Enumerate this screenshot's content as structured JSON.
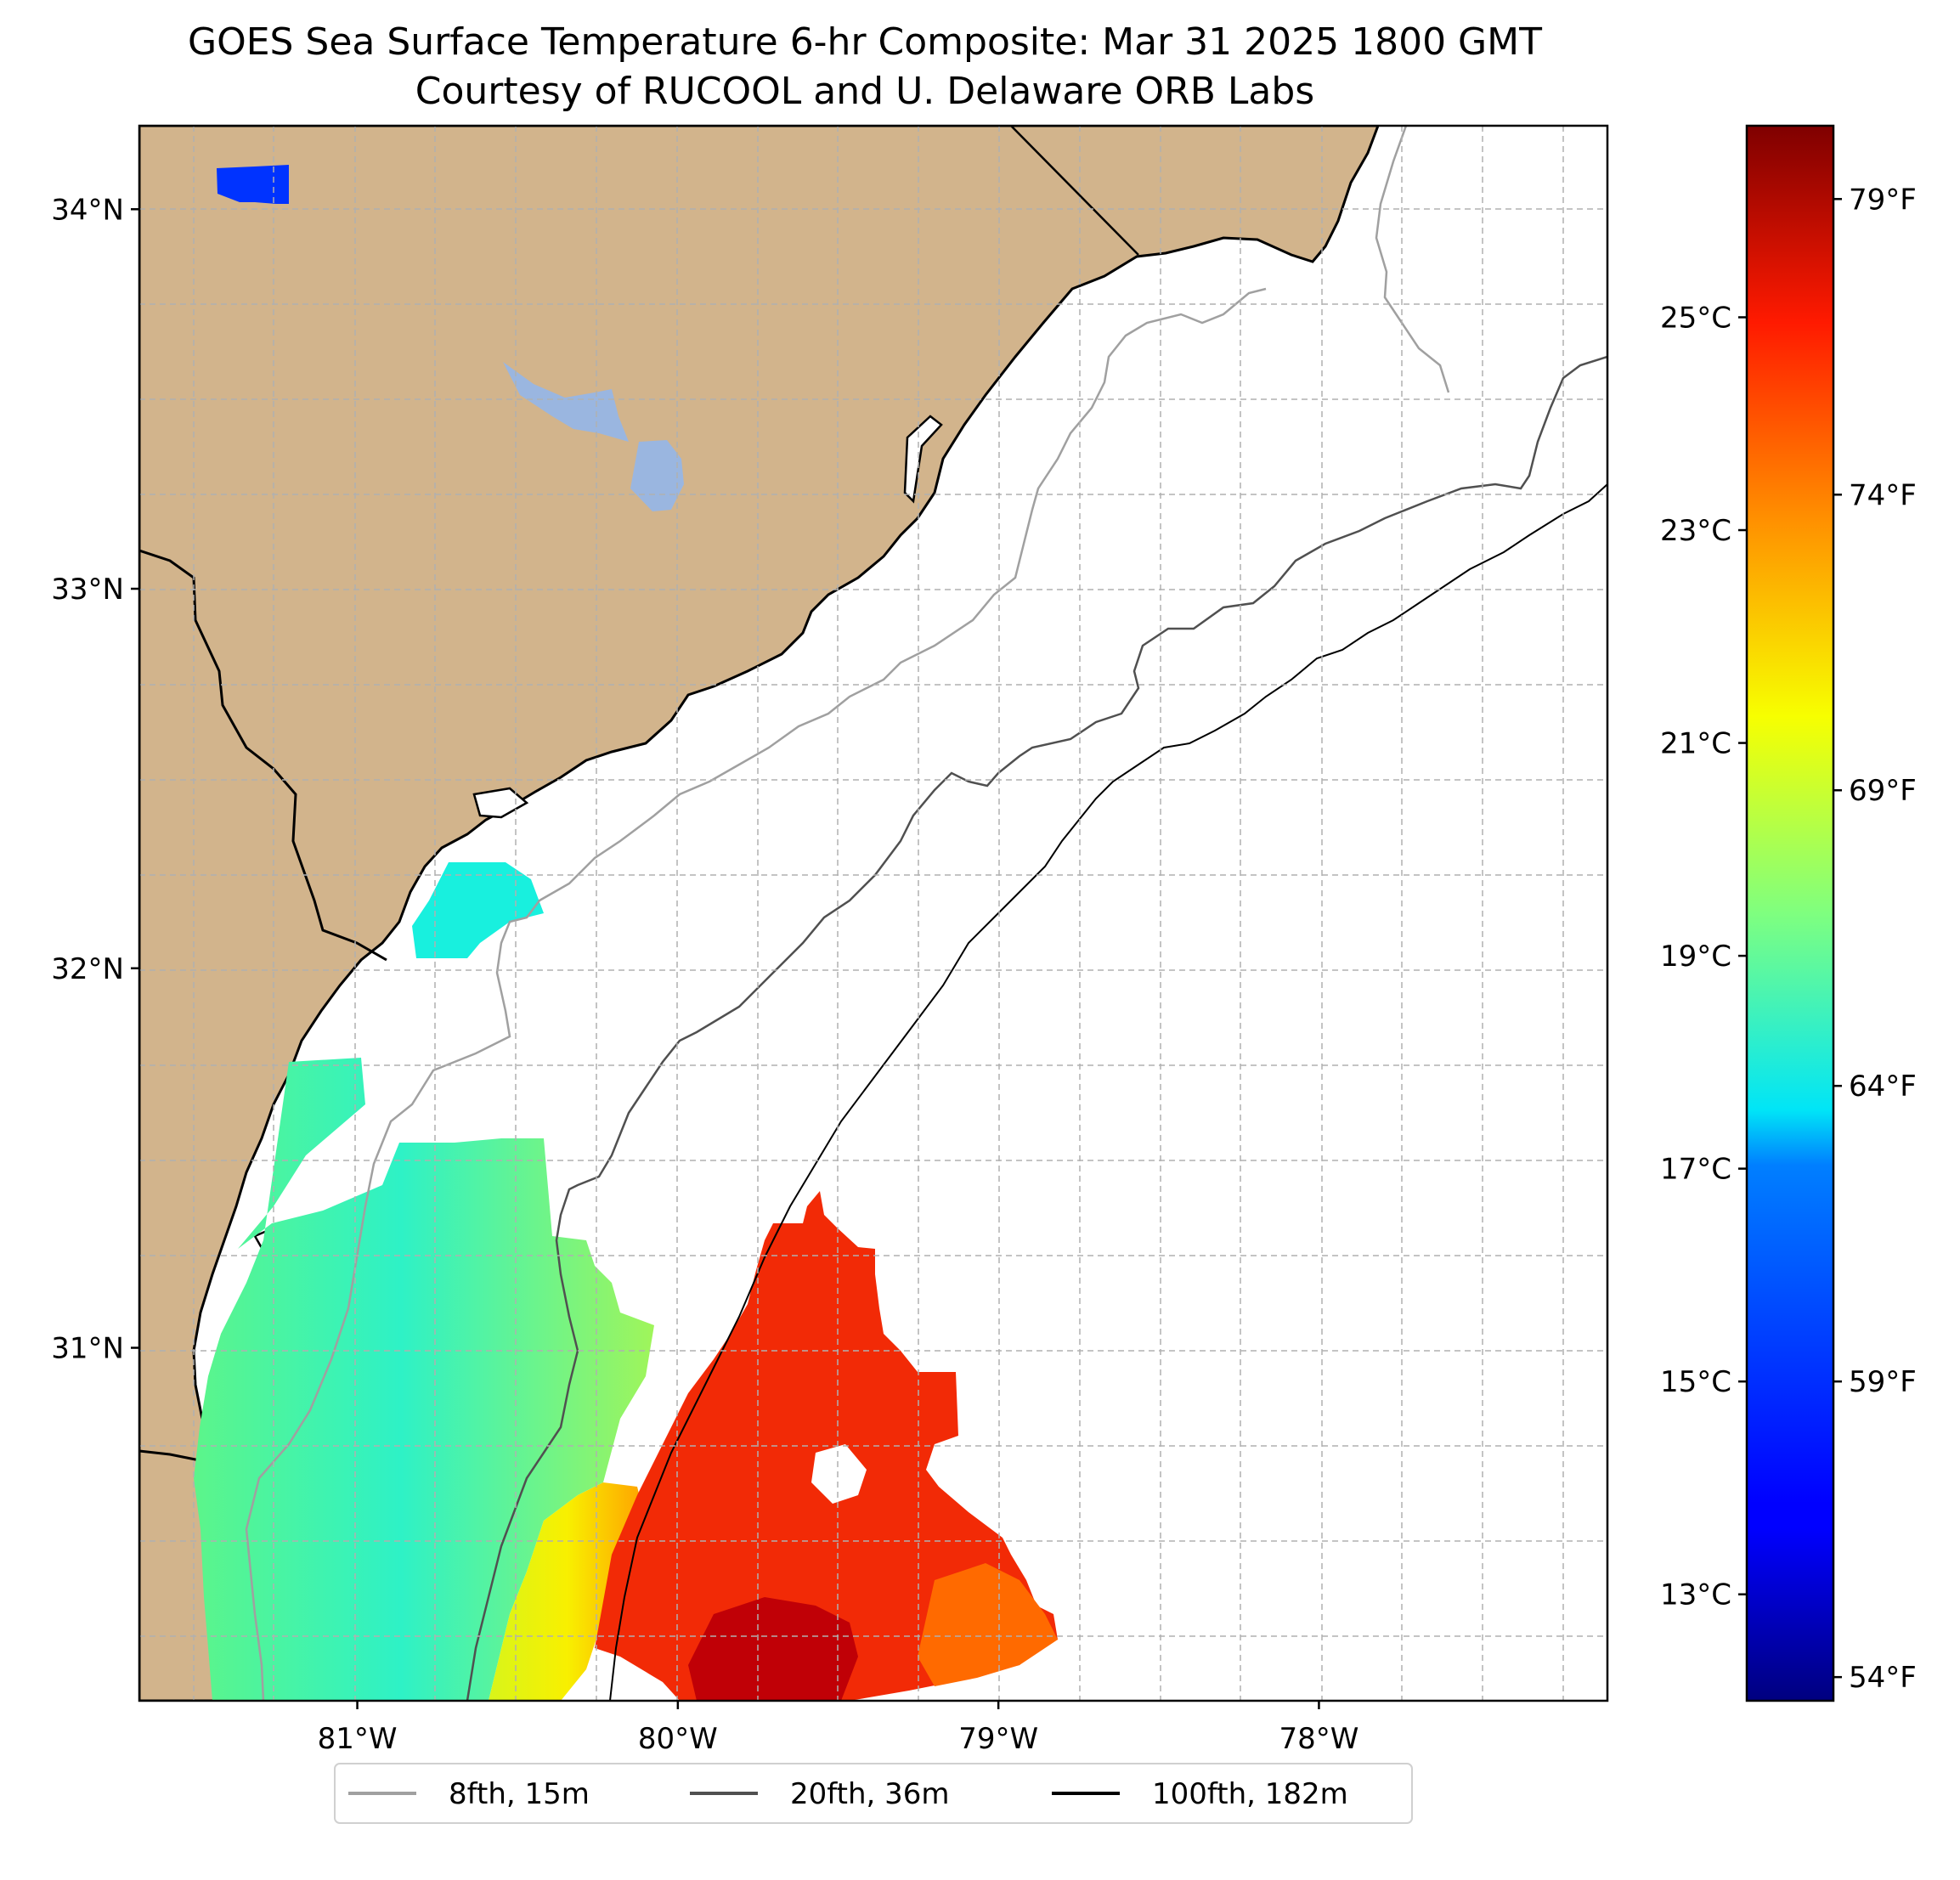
{
  "title": {
    "line1": "GOES Sea Surface Temperature 6-hr Composite: Mar 31 2025 1800 GMT",
    "line2": "Courtesy of RUCOOL and U. Delaware ORB Labs"
  },
  "map": {
    "lon_range": [
      -81.68,
      -77.1
    ],
    "lat_range": [
      30.07,
      34.22
    ],
    "lat_ticks": [
      {
        "value": 34,
        "label": "34°N"
      },
      {
        "value": 33,
        "label": "33°N"
      },
      {
        "value": 32,
        "label": "32°N"
      },
      {
        "value": 31,
        "label": "31°N"
      }
    ],
    "lon_ticks": [
      {
        "value": -81,
        "label": "81°W"
      },
      {
        "value": -80,
        "label": "80°W"
      },
      {
        "value": -79,
        "label": "79°W"
      },
      {
        "value": -78,
        "label": "78°W"
      }
    ],
    "gridlines": true,
    "colors": {
      "land": "#d2b48c",
      "lake": "#9ab6e0",
      "ocean": "#ffffff",
      "coast": "#000000",
      "grid": "#b0b0b0"
    }
  },
  "colorbar": {
    "range_c": [
      12.0,
      26.8
    ],
    "colormap": "jet",
    "celsius_ticks": [
      {
        "value": 13,
        "label": "13°C"
      },
      {
        "value": 15,
        "label": "15°C"
      },
      {
        "value": 17,
        "label": "17°C"
      },
      {
        "value": 19,
        "label": "19°C"
      },
      {
        "value": 21,
        "label": "21°C"
      },
      {
        "value": 23,
        "label": "23°C"
      },
      {
        "value": 25,
        "label": "25°C"
      }
    ],
    "fahrenheit_ticks": [
      {
        "value": 54,
        "label": "54°F"
      },
      {
        "value": 59,
        "label": "59°F"
      },
      {
        "value": 64,
        "label": "64°F"
      },
      {
        "value": 69,
        "label": "69°F"
      },
      {
        "value": 74,
        "label": "74°F"
      },
      {
        "value": 79,
        "label": "79°F"
      }
    ]
  },
  "legend": {
    "items": [
      {
        "label": "8fth, 15m",
        "color": "#a0a0a0"
      },
      {
        "label": "20fth, 36m",
        "color": "#505050"
      },
      {
        "label": "100fth, 182m",
        "color": "#000000"
      }
    ]
  }
}
